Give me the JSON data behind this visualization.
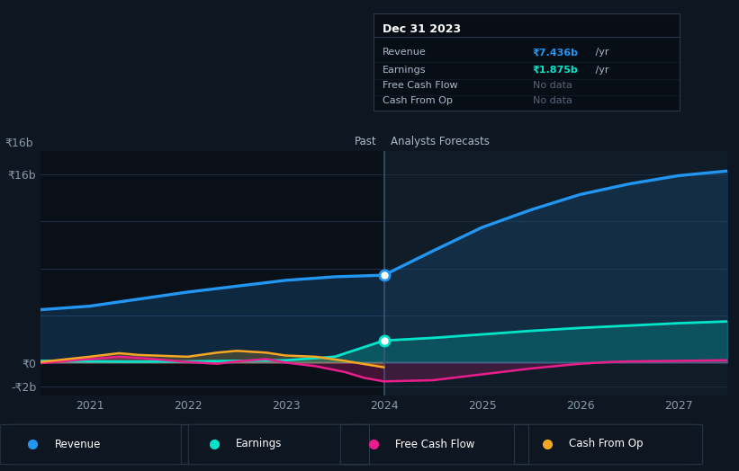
{
  "bg_color": "#0e1621",
  "plot_bg_dark": "#0a1220",
  "plot_bg_light": "#101e2e",
  "grid_color": "#1a2535",
  "divider_x": 2024.0,
  "ylim": [
    -2800000000.0,
    18000000000.0
  ],
  "yticks": [
    -2000000000.0,
    0,
    4000000000.0,
    8000000000.0,
    12000000000.0,
    16000000000.0
  ],
  "xlim": [
    2020.5,
    2027.5
  ],
  "xticks": [
    2021,
    2022,
    2023,
    2024,
    2025,
    2026,
    2027
  ],
  "revenue_color": "#2196f3",
  "earnings_color": "#00e5c9",
  "fcf_color": "#e91e8c",
  "cfo_color": "#f5a623",
  "revenue_past_x": [
    2020.5,
    2021.0,
    2021.5,
    2022.0,
    2022.5,
    2023.0,
    2023.5,
    2024.0
  ],
  "revenue_past_y": [
    4500000000.0,
    4800000000.0,
    5400000000.0,
    6000000000.0,
    6500000000.0,
    7000000000.0,
    7300000000.0,
    7436000000.0
  ],
  "revenue_future_x": [
    2024.0,
    2024.5,
    2025.0,
    2025.5,
    2026.0,
    2026.5,
    2027.0,
    2027.5
  ],
  "revenue_future_y": [
    7436000000.0,
    9500000000.0,
    11500000000.0,
    13000000000.0,
    14300000000.0,
    15200000000.0,
    15900000000.0,
    16300000000.0
  ],
  "earnings_past_x": [
    2020.5,
    2021.0,
    2021.5,
    2022.0,
    2022.5,
    2023.0,
    2023.5,
    2024.0
  ],
  "earnings_past_y": [
    150000000.0,
    100000000.0,
    80000000.0,
    100000000.0,
    150000000.0,
    200000000.0,
    500000000.0,
    1875000000.0
  ],
  "earnings_future_x": [
    2024.0,
    2024.5,
    2025.0,
    2025.5,
    2026.0,
    2026.5,
    2027.0,
    2027.5
  ],
  "earnings_future_y": [
    1875000000.0,
    2100000000.0,
    2400000000.0,
    2700000000.0,
    2950000000.0,
    3150000000.0,
    3350000000.0,
    3500000000.0
  ],
  "fcf_past_x": [
    2020.5,
    2021.0,
    2021.3,
    2021.5,
    2022.0,
    2022.3,
    2022.5,
    2022.8,
    2023.0,
    2023.3,
    2023.6,
    2023.8,
    2024.0
  ],
  "fcf_past_y": [
    -50000000.0,
    300000000.0,
    500000000.0,
    400000000.0,
    50000000.0,
    -100000000.0,
    100000000.0,
    300000000.0,
    0.0,
    -300000000.0,
    -800000000.0,
    -1300000000.0,
    -1600000000.0
  ],
  "fcf_future_x": [
    2024.0,
    2024.5,
    2025.0,
    2025.5,
    2026.0,
    2026.3,
    2026.5,
    2027.0,
    2027.5
  ],
  "fcf_future_y": [
    -1600000000.0,
    -1500000000.0,
    -1000000000.0,
    -500000000.0,
    -100000000.0,
    50000000.0,
    100000000.0,
    150000000.0,
    200000000.0
  ],
  "cfo_past_x": [
    2020.5,
    2021.0,
    2021.3,
    2021.5,
    2022.0,
    2022.3,
    2022.5,
    2022.8,
    2023.0,
    2023.3,
    2023.6,
    2024.0
  ],
  "cfo_past_y": [
    50000000.0,
    500000000.0,
    800000000.0,
    650000000.0,
    500000000.0,
    850000000.0,
    1000000000.0,
    850000000.0,
    600000000.0,
    500000000.0,
    150000000.0,
    -400000000.0
  ],
  "tooltip_title": "Dec 31 2023",
  "tooltip_revenue_label": "Revenue",
  "tooltip_revenue_value": "₹7.436b",
  "tooltip_revenue_unit": " /yr",
  "tooltip_earnings_label": "Earnings",
  "tooltip_earnings_value": "₹1.875b",
  "tooltip_earnings_unit": " /yr",
  "tooltip_fcf_label": "Free Cash Flow",
  "tooltip_fcf_value": "No data",
  "tooltip_cfo_label": "Cash From Op",
  "tooltip_cfo_value": "No data",
  "past_label": "Past",
  "future_label": "Analysts Forecasts",
  "legend_items": [
    "Revenue",
    "Earnings",
    "Free Cash Flow",
    "Cash From Op"
  ],
  "legend_colors": [
    "#2196f3",
    "#00e5c9",
    "#e91e8c",
    "#f5a623"
  ]
}
